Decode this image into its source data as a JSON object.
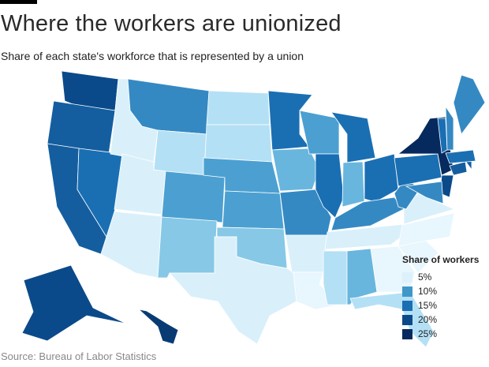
{
  "header": {
    "title": "Where the workers are unionized",
    "subtitle": "Share of each state's workforce that is represented by a union"
  },
  "source": "Source: Bureau of Labor Statistics",
  "legend": {
    "title": "Share of workers",
    "items": [
      {
        "label": "5%",
        "color": "#ddf1fb"
      },
      {
        "label": "10%",
        "color": "#3f97c9"
      },
      {
        "label": "15%",
        "color": "#1a6fb3"
      },
      {
        "label": "20%",
        "color": "#0b4a8a"
      },
      {
        "label": "25%",
        "color": "#062a5e"
      }
    ]
  },
  "state_values": {
    "WA": 19,
    "OR": 16,
    "CA": 16,
    "NV": 15,
    "ID": 5,
    "MT": 12,
    "WY": 6,
    "UT": 5,
    "AZ": 5,
    "CO": 9,
    "NM": 7,
    "ND": 6,
    "SD": 6,
    "NE": 9,
    "KS": 9,
    "OK": 7,
    "TX": 5,
    "MN": 15,
    "IA": 8,
    "MO": 10,
    "AR": 5,
    "LA": 4,
    "WI": 9,
    "IL": 15,
    "MI": 15,
    "IN": 8,
    "OH": 13,
    "KY": 11,
    "TN": 5,
    "MS": 6,
    "AL": 8,
    "GA": 4,
    "FL": 6,
    "SC": 3,
    "NC": 3,
    "VA": 5,
    "WV": 11,
    "PA": 13,
    "NY": 25,
    "NJ": 18,
    "MD": 12,
    "CT": 17,
    "RI": 17,
    "MA": 14,
    "VT": 13,
    "NH": 10,
    "ME": 12,
    "AK": 20,
    "HI": 23
  }
}
